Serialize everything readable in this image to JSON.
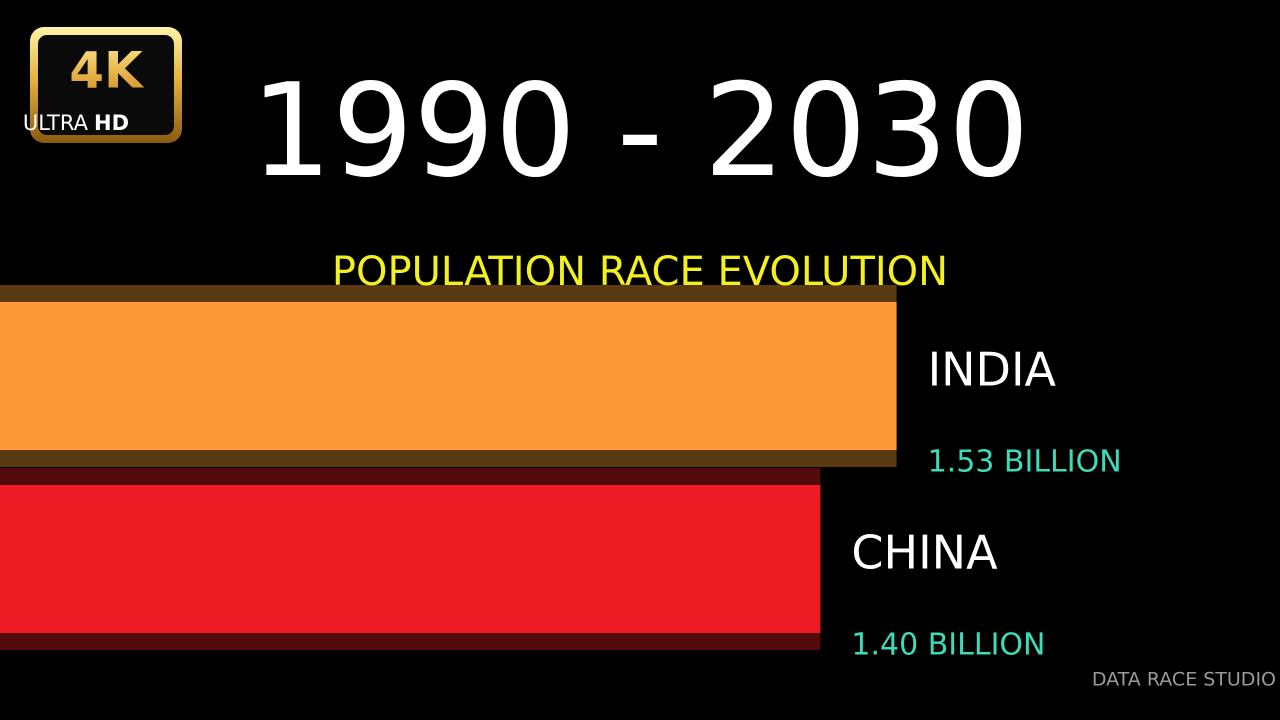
{
  "chart_data": {
    "type": "bar",
    "orientation": "horizontal",
    "title": "1990 - 2030",
    "subtitle": "POPULATION RACE EVOLUTION",
    "watermark": "DATA RACE STUDIO",
    "badge": {
      "main": "4K",
      "sub": "ULTRA",
      "sub_bold": "HD"
    },
    "categories": [
      "INDIA",
      "CHINA"
    ],
    "values": [
      1.53,
      1.4
    ],
    "value_labels": [
      "1.53 BILLION",
      "1.40 BILLION"
    ],
    "colors": [
      "#fd9a38",
      "#ed1c24"
    ],
    "band_colors": [
      "#5a3a12",
      "#520a0c"
    ]
  }
}
